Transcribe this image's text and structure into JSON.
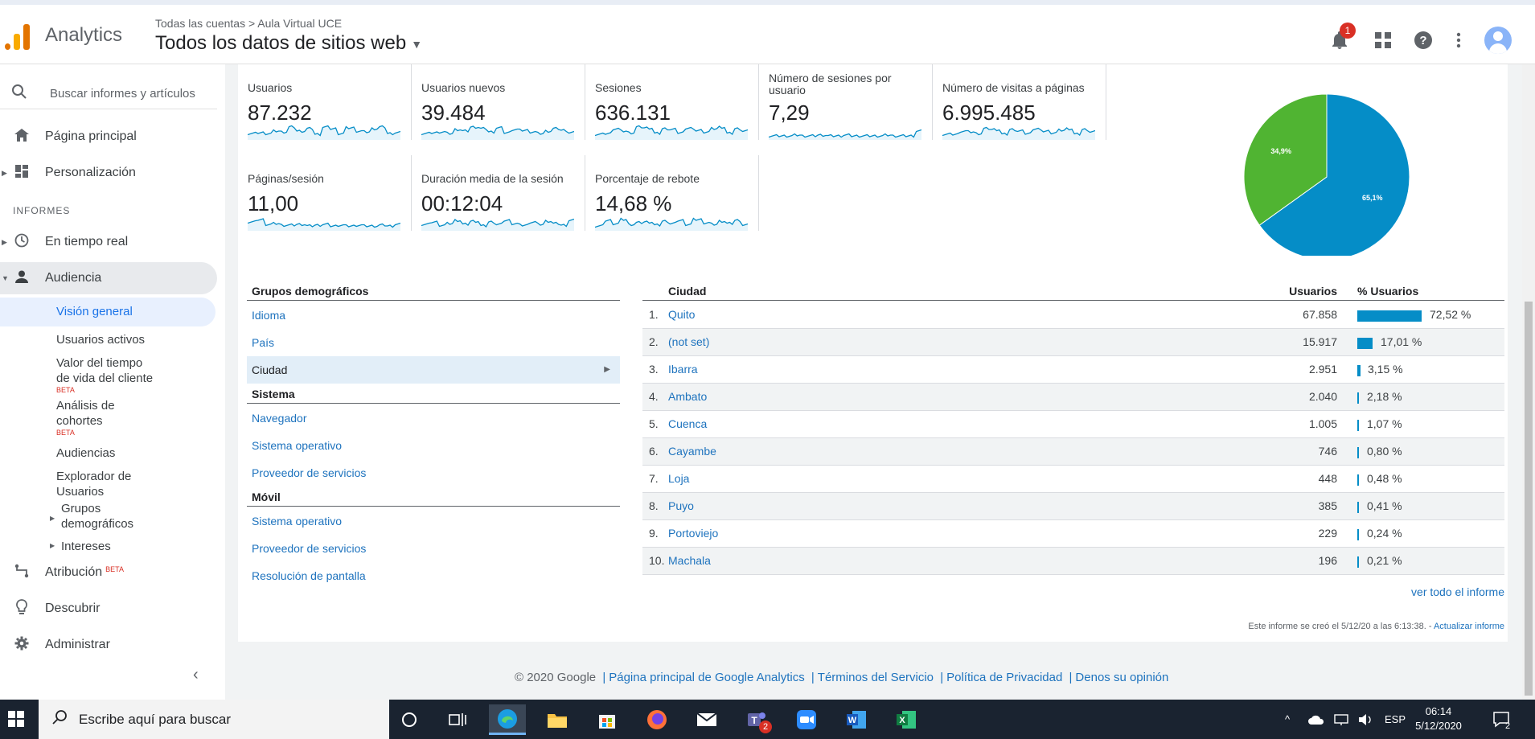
{
  "header": {
    "app_name": "Analytics",
    "breadcrumb": "Todas las cuentas > Aula Virtual UCE",
    "view_title": "Todos los datos de sitios web",
    "notification_count": "1"
  },
  "sidebar": {
    "search_placeholder": "Buscar informes y artículos",
    "home": "Página principal",
    "customization": "Personalización",
    "section_reports": "INFORMES",
    "realtime": "En tiempo real",
    "audience": "Audiencia",
    "audience_items": {
      "overview": "Visión general",
      "active_users": "Usuarios activos",
      "lifetime_value_1": "Valor del tiempo",
      "lifetime_value_2": "de vida del cliente",
      "cohort_1": "Análisis de",
      "cohort_2": "cohortes",
      "audiences": "Audiencias",
      "user_explorer_1": "Explorador de",
      "user_explorer_2": "Usuarios",
      "demographics_1": "Grupos",
      "demographics_2": "demográficos",
      "interests": "Intereses",
      "beta": "BETA"
    },
    "attribution": "Atribución",
    "attribution_beta": "BETA",
    "discover": "Descubrir",
    "admin": "Administrar"
  },
  "metrics": [
    {
      "label": "Usuarios",
      "value": "87.232"
    },
    {
      "label": "Usuarios nuevos",
      "value": "39.484"
    },
    {
      "label": "Sesiones",
      "value": "636.131"
    },
    {
      "label": "Número de sesiones por usuario",
      "value": "7,29"
    },
    {
      "label": "Número de visitas a páginas",
      "value": "6.995.485"
    },
    {
      "label": "Páginas/sesión",
      "value": "11,00"
    },
    {
      "label": "Duración media de la sesión",
      "value": "00:12:04"
    },
    {
      "label": "Porcentaje de rebote",
      "value": "14,68 %"
    }
  ],
  "pie": {
    "slices": [
      {
        "label": "65,1%",
        "value": 65.1,
        "color": "#058dc7"
      },
      {
        "label": "34,9%",
        "value": 34.9,
        "color": "#50b432"
      }
    ]
  },
  "demographics": {
    "groups": [
      {
        "title": "Grupos demográficos",
        "links": [
          "Idioma",
          "País",
          "Ciudad"
        ]
      },
      {
        "title": "Sistema",
        "links": [
          "Navegador",
          "Sistema operativo",
          "Proveedor de servicios"
        ]
      },
      {
        "title": "Móvil",
        "links": [
          "Sistema operativo",
          "Proveedor de servicios",
          "Resolución de pantalla"
        ]
      }
    ]
  },
  "city_table": {
    "col_city": "Ciudad",
    "col_users": "Usuarios",
    "col_pct": "% Usuarios",
    "rows": [
      {
        "n": "1.",
        "city": "Quito",
        "users": "67.858",
        "pct": "72,52 %",
        "share": 72.52
      },
      {
        "n": "2.",
        "city": "(not set)",
        "users": "15.917",
        "pct": "17,01 %",
        "share": 17.01
      },
      {
        "n": "3.",
        "city": "Ibarra",
        "users": "2.951",
        "pct": "3,15 %",
        "share": 3.15
      },
      {
        "n": "4.",
        "city": "Ambato",
        "users": "2.040",
        "pct": "2,18 %",
        "share": 2.18
      },
      {
        "n": "5.",
        "city": "Cuenca",
        "users": "1.005",
        "pct": "1,07 %",
        "share": 1.07
      },
      {
        "n": "6.",
        "city": "Cayambe",
        "users": "746",
        "pct": "0,80 %",
        "share": 0.8
      },
      {
        "n": "7.",
        "city": "Loja",
        "users": "448",
        "pct": "0,48 %",
        "share": 0.48
      },
      {
        "n": "8.",
        "city": "Puyo",
        "users": "385",
        "pct": "0,41 %",
        "share": 0.41
      },
      {
        "n": "9.",
        "city": "Portoviejo",
        "users": "229",
        "pct": "0,24 %",
        "share": 0.24
      },
      {
        "n": "10.",
        "city": "Machala",
        "users": "196",
        "pct": "0,21 %",
        "share": 0.21
      }
    ],
    "see_all": "ver todo el informe",
    "created_text": "Este informe se creó el 5/12/20 a las 6:13:38. - ",
    "update_link": "Actualizar informe"
  },
  "footer": {
    "copyright": "© 2020 Google",
    "links": [
      "Página principal de Google Analytics",
      "Términos del Servicio",
      "Política de Privacidad",
      "Denos su opinión"
    ]
  },
  "taskbar": {
    "search_text": "Escribe aquí para buscar",
    "teams_badge": "2",
    "language": "ESP",
    "time": "06:14",
    "date": "5/12/2020",
    "notif_count": "2"
  },
  "colors": {
    "accent": "#1e73be",
    "bar": "#058dc7",
    "sparkline": "#058dc7"
  }
}
